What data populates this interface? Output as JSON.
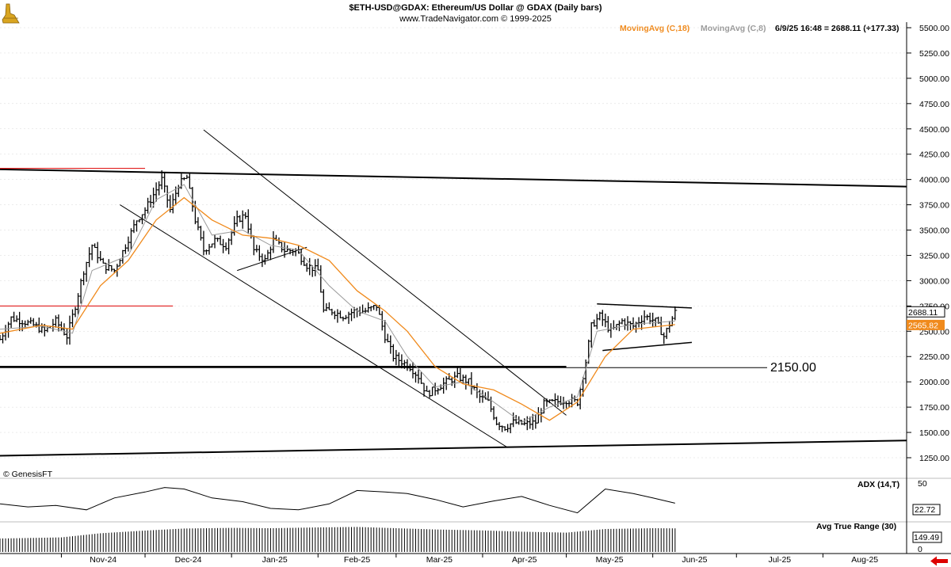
{
  "header": {
    "title": "$ETH-USD@GDAX:  Ethereum/US Dollar @ GDAX  (Daily bars)",
    "subtitle": "www.TradeNavigator.com © 1999-2025",
    "legend_ma18": "MovingAvg (C,18)",
    "legend_ma8": "MovingAvg (C,8)",
    "readout": "6/9/25 16:48 = 2688.11 (+177.33)",
    "watermark": "© GenesisFT"
  },
  "colors": {
    "price": "#000000",
    "ma18": "#f08a1c",
    "ma8": "#9a9a9a",
    "support": "#dd0000",
    "nav_arrow": "#dd0000"
  },
  "chart_data": [
    {
      "type": "ohlc",
      "title": "$ETH-USD@GDAX:  Ethereum/US Dollar @ GDAX  (Daily bars)",
      "y_scale": "linear",
      "ylim": [
        1175,
        5550
      ],
      "y_ticks": [
        {
          "v": 5500,
          "label": "5500.00"
        },
        {
          "v": 5250,
          "label": "5250.00"
        },
        {
          "v": 5000,
          "label": "5000.00"
        },
        {
          "v": 4750,
          "label": "4750.00"
        },
        {
          "v": 4500,
          "label": "4500.00"
        },
        {
          "v": 4250,
          "label": "4250.00"
        },
        {
          "v": 4000,
          "label": "4000.00"
        },
        {
          "v": 3750,
          "label": "3750.00"
        },
        {
          "v": 3500,
          "label": "3500.00"
        },
        {
          "v": 3250,
          "label": "3250.00"
        },
        {
          "v": 3000,
          "label": "3000.00"
        },
        {
          "v": 2750,
          "label": "2750.00"
        },
        {
          "v": 2500,
          "label": "2500.00"
        },
        {
          "v": 2250,
          "label": "2250.00"
        },
        {
          "v": 2000,
          "label": "2000.00"
        },
        {
          "v": 1750,
          "label": "1750.00"
        },
        {
          "v": 1500,
          "label": "1500.00"
        },
        {
          "v": 1250,
          "label": "1250.00"
        }
      ],
      "x_ticks": [
        "Nov-24",
        "Dec-24",
        "Jan-25",
        "Feb-25",
        "Mar-25",
        "Apr-25",
        "May-25",
        "Jun-25",
        "Jul-25",
        "Aug-25"
      ],
      "x_range": [
        "2024-10-10",
        "2025-08-31"
      ],
      "last_price": {
        "value": 2688.11,
        "label": "2688.11"
      },
      "last_ma18": {
        "value": 2565.82,
        "label": "2565.82"
      },
      "price_path": [
        [
          "2024-10-10",
          2420
        ],
        [
          "2024-10-14",
          2630
        ],
        [
          "2024-10-18",
          2600
        ],
        [
          "2024-10-22",
          2560
        ],
        [
          "2024-10-26",
          2500
        ],
        [
          "2024-10-30",
          2600
        ],
        [
          "2024-11-03",
          2450
        ],
        [
          "2024-11-06",
          2750
        ],
        [
          "2024-11-09",
          3100
        ],
        [
          "2024-11-12",
          3350
        ],
        [
          "2024-11-16",
          3150
        ],
        [
          "2024-11-20",
          3100
        ],
        [
          "2024-11-24",
          3350
        ],
        [
          "2024-11-28",
          3600
        ],
        [
          "2024-12-01",
          3700
        ],
        [
          "2024-12-04",
          3850
        ],
        [
          "2024-12-07",
          4000
        ],
        [
          "2024-12-10",
          3700
        ],
        [
          "2024-12-13",
          3950
        ],
        [
          "2024-12-16",
          4020
        ],
        [
          "2024-12-19",
          3600
        ],
        [
          "2024-12-22",
          3300
        ],
        [
          "2024-12-26",
          3400
        ],
        [
          "2024-12-30",
          3350
        ],
        [
          "2025-01-03",
          3600
        ],
        [
          "2025-01-06",
          3650
        ],
        [
          "2025-01-09",
          3300
        ],
        [
          "2025-01-13",
          3200
        ],
        [
          "2025-01-16",
          3400
        ],
        [
          "2025-01-20",
          3300
        ],
        [
          "2025-01-24",
          3300
        ],
        [
          "2025-01-28",
          3150
        ],
        [
          "2025-02-01",
          3100
        ],
        [
          "2025-02-03",
          2700
        ],
        [
          "2025-02-06",
          2700
        ],
        [
          "2025-02-10",
          2650
        ],
        [
          "2025-02-14",
          2700
        ],
        [
          "2025-02-18",
          2700
        ],
        [
          "2025-02-22",
          2750
        ],
        [
          "2025-02-25",
          2450
        ],
        [
          "2025-02-28",
          2250
        ],
        [
          "2025-03-03",
          2200
        ],
        [
          "2025-03-06",
          2150
        ],
        [
          "2025-03-09",
          2050
        ],
        [
          "2025-03-12",
          1880
        ],
        [
          "2025-03-15",
          1930
        ],
        [
          "2025-03-19",
          2000
        ],
        [
          "2025-03-23",
          2050
        ],
        [
          "2025-03-27",
          2000
        ],
        [
          "2025-03-31",
          1850
        ],
        [
          "2025-04-03",
          1800
        ],
        [
          "2025-04-06",
          1600
        ],
        [
          "2025-04-09",
          1550
        ],
        [
          "2025-04-12",
          1600
        ],
        [
          "2025-04-16",
          1580
        ],
        [
          "2025-04-20",
          1600
        ],
        [
          "2025-04-23",
          1780
        ],
        [
          "2025-04-27",
          1800
        ],
        [
          "2025-05-01",
          1820
        ],
        [
          "2025-05-05",
          1800
        ],
        [
          "2025-05-08",
          2200
        ],
        [
          "2025-05-10",
          2550
        ],
        [
          "2025-05-13",
          2650
        ],
        [
          "2025-05-17",
          2500
        ],
        [
          "2025-05-21",
          2600
        ],
        [
          "2025-05-25",
          2550
        ],
        [
          "2025-05-29",
          2650
        ],
        [
          "2025-06-02",
          2600
        ],
        [
          "2025-06-05",
          2450
        ],
        [
          "2025-06-09",
          2688
        ]
      ],
      "bar_noise": 35,
      "overlays": {
        "ma18": [
          [
            "2024-10-10",
            2480
          ],
          [
            "2024-10-25",
            2560
          ],
          [
            "2024-11-05",
            2520
          ],
          [
            "2024-11-15",
            2950
          ],
          [
            "2024-11-25",
            3200
          ],
          [
            "2024-12-05",
            3600
          ],
          [
            "2024-12-15",
            3820
          ],
          [
            "2024-12-25",
            3600
          ],
          [
            "2025-01-05",
            3450
          ],
          [
            "2025-01-15",
            3420
          ],
          [
            "2025-01-25",
            3350
          ],
          [
            "2025-02-05",
            3200
          ],
          [
            "2025-02-15",
            2900
          ],
          [
            "2025-02-25",
            2700
          ],
          [
            "2025-03-05",
            2500
          ],
          [
            "2025-03-15",
            2150
          ],
          [
            "2025-03-25",
            1980
          ],
          [
            "2025-04-05",
            1920
          ],
          [
            "2025-04-15",
            1780
          ],
          [
            "2025-04-25",
            1620
          ],
          [
            "2025-05-05",
            1800
          ],
          [
            "2025-05-15",
            2250
          ],
          [
            "2025-05-25",
            2520
          ],
          [
            "2025-06-09",
            2566
          ]
        ],
        "ma8": [
          [
            "2024-10-10",
            2520
          ],
          [
            "2024-10-25",
            2550
          ],
          [
            "2024-11-05",
            2480
          ],
          [
            "2024-11-12",
            3100
          ],
          [
            "2024-11-25",
            3250
          ],
          [
            "2024-12-05",
            3800
          ],
          [
            "2024-12-15",
            3950
          ],
          [
            "2024-12-25",
            3450
          ],
          [
            "2025-01-05",
            3500
          ],
          [
            "2025-01-15",
            3350
          ],
          [
            "2025-01-25",
            3300
          ],
          [
            "2025-02-05",
            2950
          ],
          [
            "2025-02-15",
            2700
          ],
          [
            "2025-02-25",
            2600
          ],
          [
            "2025-03-05",
            2250
          ],
          [
            "2025-03-15",
            1950
          ],
          [
            "2025-03-25",
            2000
          ],
          [
            "2025-04-05",
            1800
          ],
          [
            "2025-04-15",
            1600
          ],
          [
            "2025-04-25",
            1750
          ],
          [
            "2025-05-05",
            1850
          ],
          [
            "2025-05-12",
            2500
          ],
          [
            "2025-05-25",
            2570
          ],
          [
            "2025-06-09",
            2600
          ]
        ]
      },
      "trendlines": [
        {
          "from": [
            "2024-10-10",
            4100
          ],
          "to": [
            "2025-08-31",
            3930
          ],
          "color": "#000000",
          "width": 2
        },
        {
          "from": [
            "2024-10-10",
            1270
          ],
          "to": [
            "2025-08-31",
            1420
          ],
          "color": "#000000",
          "width": 2
        },
        {
          "from": [
            "2024-10-10",
            2150
          ],
          "to": [
            "2025-05-01",
            2150
          ],
          "color": "#000000",
          "width": 2
        },
        {
          "from": [
            "2024-10-10",
            2140
          ],
          "to": [
            "2025-07-12",
            2140
          ],
          "color": "#000000",
          "width": 1
        },
        {
          "from": [
            "2024-10-10",
            2750
          ],
          "to": [
            "2024-12-11",
            2750
          ],
          "color": "#dd0000",
          "width": 1
        },
        {
          "from": [
            "2024-10-10",
            4110
          ],
          "to": [
            "2024-12-01",
            4110
          ],
          "color": "#dd0000",
          "width": 1
        },
        {
          "from": [
            "2024-12-22",
            4490
          ],
          "to": [
            "2025-05-01",
            1670
          ],
          "color": "#000000",
          "width": 1
        },
        {
          "from": [
            "2024-11-22",
            3750
          ],
          "to": [
            "2025-04-10",
            1350
          ],
          "color": "#000000",
          "width": 1
        },
        {
          "from": [
            "2025-01-03",
            3100
          ],
          "to": [
            "2025-01-28",
            3330
          ],
          "color": "#000000",
          "width": 1
        },
        {
          "from": [
            "2025-05-12",
            2770
          ],
          "to": [
            "2025-06-15",
            2730
          ],
          "color": "#000000",
          "width": 1.5
        },
        {
          "from": [
            "2025-05-14",
            2310
          ],
          "to": [
            "2025-06-15",
            2390
          ],
          "color": "#000000",
          "width": 1.5
        }
      ],
      "annotations": [
        {
          "label": "2150.00",
          "x": "2025-07-12",
          "y": 2150
        }
      ]
    },
    {
      "type": "line",
      "title": "ADX (14,T)",
      "ylim": [
        0,
        50
      ],
      "y_ticks": [
        {
          "v": 50,
          "label": "50"
        }
      ],
      "last_value": {
        "value": 22.72,
        "label": "22.72"
      },
      "series": [
        {
          "values": [
            [
              "2024-10-10",
              22
            ],
            [
              "2024-10-20",
              18
            ],
            [
              "2024-10-30",
              20
            ],
            [
              "2024-11-10",
              14
            ],
            [
              "2024-11-20",
              30
            ],
            [
              "2024-12-01",
              38
            ],
            [
              "2024-12-08",
              44
            ],
            [
              "2024-12-15",
              42
            ],
            [
              "2024-12-25",
              30
            ],
            [
              "2025-01-05",
              25
            ],
            [
              "2025-01-15",
              16
            ],
            [
              "2025-01-25",
              14
            ],
            [
              "2025-02-05",
              22
            ],
            [
              "2025-02-15",
              40
            ],
            [
              "2025-02-25",
              38
            ],
            [
              "2025-03-05",
              36
            ],
            [
              "2025-03-15",
              28
            ],
            [
              "2025-03-25",
              18
            ],
            [
              "2025-04-05",
              26
            ],
            [
              "2025-04-15",
              32
            ],
            [
              "2025-04-25",
              20
            ],
            [
              "2025-05-05",
              10
            ],
            [
              "2025-05-15",
              42
            ],
            [
              "2025-05-25",
              36
            ],
            [
              "2025-06-01",
              30
            ],
            [
              "2025-06-09",
              23
            ]
          ]
        }
      ]
    },
    {
      "type": "bar",
      "title": "Avg True Range (30)",
      "ylim": [
        0,
        160
      ],
      "y_ticks": [
        {
          "v": 0,
          "label": "0"
        }
      ],
      "last_value": {
        "value": 149.49,
        "label": "149.49"
      },
      "series": [
        {
          "values": [
            [
              "2024-10-10",
              85
            ],
            [
              "2024-11-01",
              92
            ],
            [
              "2024-11-15",
              118
            ],
            [
              "2024-12-01",
              135
            ],
            [
              "2024-12-15",
              148
            ],
            [
              "2025-01-01",
              152
            ],
            [
              "2025-01-15",
              150
            ],
            [
              "2025-02-01",
              155
            ],
            [
              "2025-02-15",
              158
            ],
            [
              "2025-03-01",
              150
            ],
            [
              "2025-03-15",
              142
            ],
            [
              "2025-04-01",
              136
            ],
            [
              "2025-04-15",
              128
            ],
            [
              "2025-05-01",
              122
            ],
            [
              "2025-05-15",
              145
            ],
            [
              "2025-06-01",
              150
            ],
            [
              "2025-06-09",
              149
            ]
          ]
        }
      ]
    }
  ]
}
